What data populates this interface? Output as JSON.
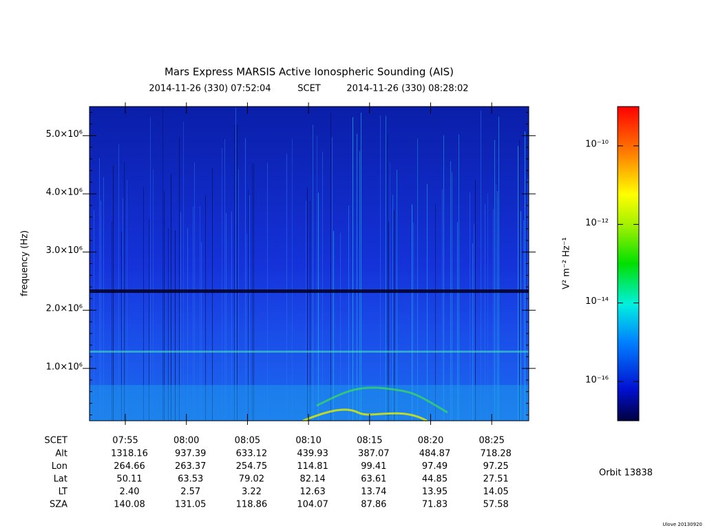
{
  "chart_data": {
    "type": "spectrogram",
    "title": "Mars Express MARSIS Active Ionospheric Sounding (AIS)",
    "start_label": "2014-11-26 (330) 07:52:04",
    "time_system": "SCET",
    "end_label": "2014-11-26 (330) 08:28:02",
    "y_label": "frequency (Hz)",
    "xlim": [
      "2014-11-26T07:52:04",
      "2014-11-26T08:28:02"
    ],
    "xticks": [
      {
        "value": "2014-11-26T07:55:00",
        "label": "07:55"
      },
      {
        "value": "2014-11-26T08:00:00",
        "label": "08:00"
      },
      {
        "value": "2014-11-26T08:05:00",
        "label": "08:05"
      },
      {
        "value": "2014-11-26T08:10:00",
        "label": "08:10"
      },
      {
        "value": "2014-11-26T08:15:00",
        "label": "08:15"
      },
      {
        "value": "2014-11-26T08:20:00",
        "label": "08:20"
      },
      {
        "value": "2014-11-26T08:25:00",
        "label": "08:25"
      }
    ],
    "ylim": [
      100000,
      5500000
    ],
    "yticks": [
      {
        "value": 1000000,
        "label": "1.0×10⁶"
      },
      {
        "value": 2000000,
        "label": "2.0×10⁶"
      },
      {
        "value": 3000000,
        "label": "3.0×10⁶"
      },
      {
        "value": 4000000,
        "label": "4.0×10⁶"
      },
      {
        "value": 5000000,
        "label": "5.0×10⁶"
      }
    ],
    "ephemeris": [
      {
        "name": "Alt",
        "values": [
          "1318.16",
          "937.39",
          "633.12",
          "439.93",
          "387.07",
          "484.87",
          "718.28"
        ]
      },
      {
        "name": "Lon",
        "values": [
          "264.66",
          "263.37",
          "254.75",
          "114.81",
          "99.41",
          "97.49",
          "97.25"
        ]
      },
      {
        "name": "Lat",
        "values": [
          "50.11",
          "63.53",
          "79.02",
          "82.14",
          "63.61",
          "44.85",
          "27.51"
        ]
      },
      {
        "name": "LT",
        "values": [
          "2.40",
          "2.57",
          "3.22",
          "12.63",
          "13.74",
          "13.95",
          "14.05"
        ]
      },
      {
        "name": "SZA",
        "values": [
          "140.08",
          "131.05",
          "118.86",
          "104.07",
          "87.86",
          "71.83",
          "57.58"
        ]
      }
    ],
    "colorbar": {
      "label": "V² m⁻² Hz⁻¹",
      "log": true,
      "lim": [
        1e-17,
        1e-09
      ],
      "ticks": [
        {
          "value": 1e-16,
          "label": "10⁻¹⁶"
        },
        {
          "value": 1e-14,
          "label": "10⁻¹⁴"
        },
        {
          "value": 1e-12,
          "label": "10⁻¹²"
        },
        {
          "value": 1e-10,
          "label": "10⁻¹⁰"
        }
      ]
    },
    "orbit": "Orbit 13838",
    "footer": "Ulove 20130920"
  }
}
